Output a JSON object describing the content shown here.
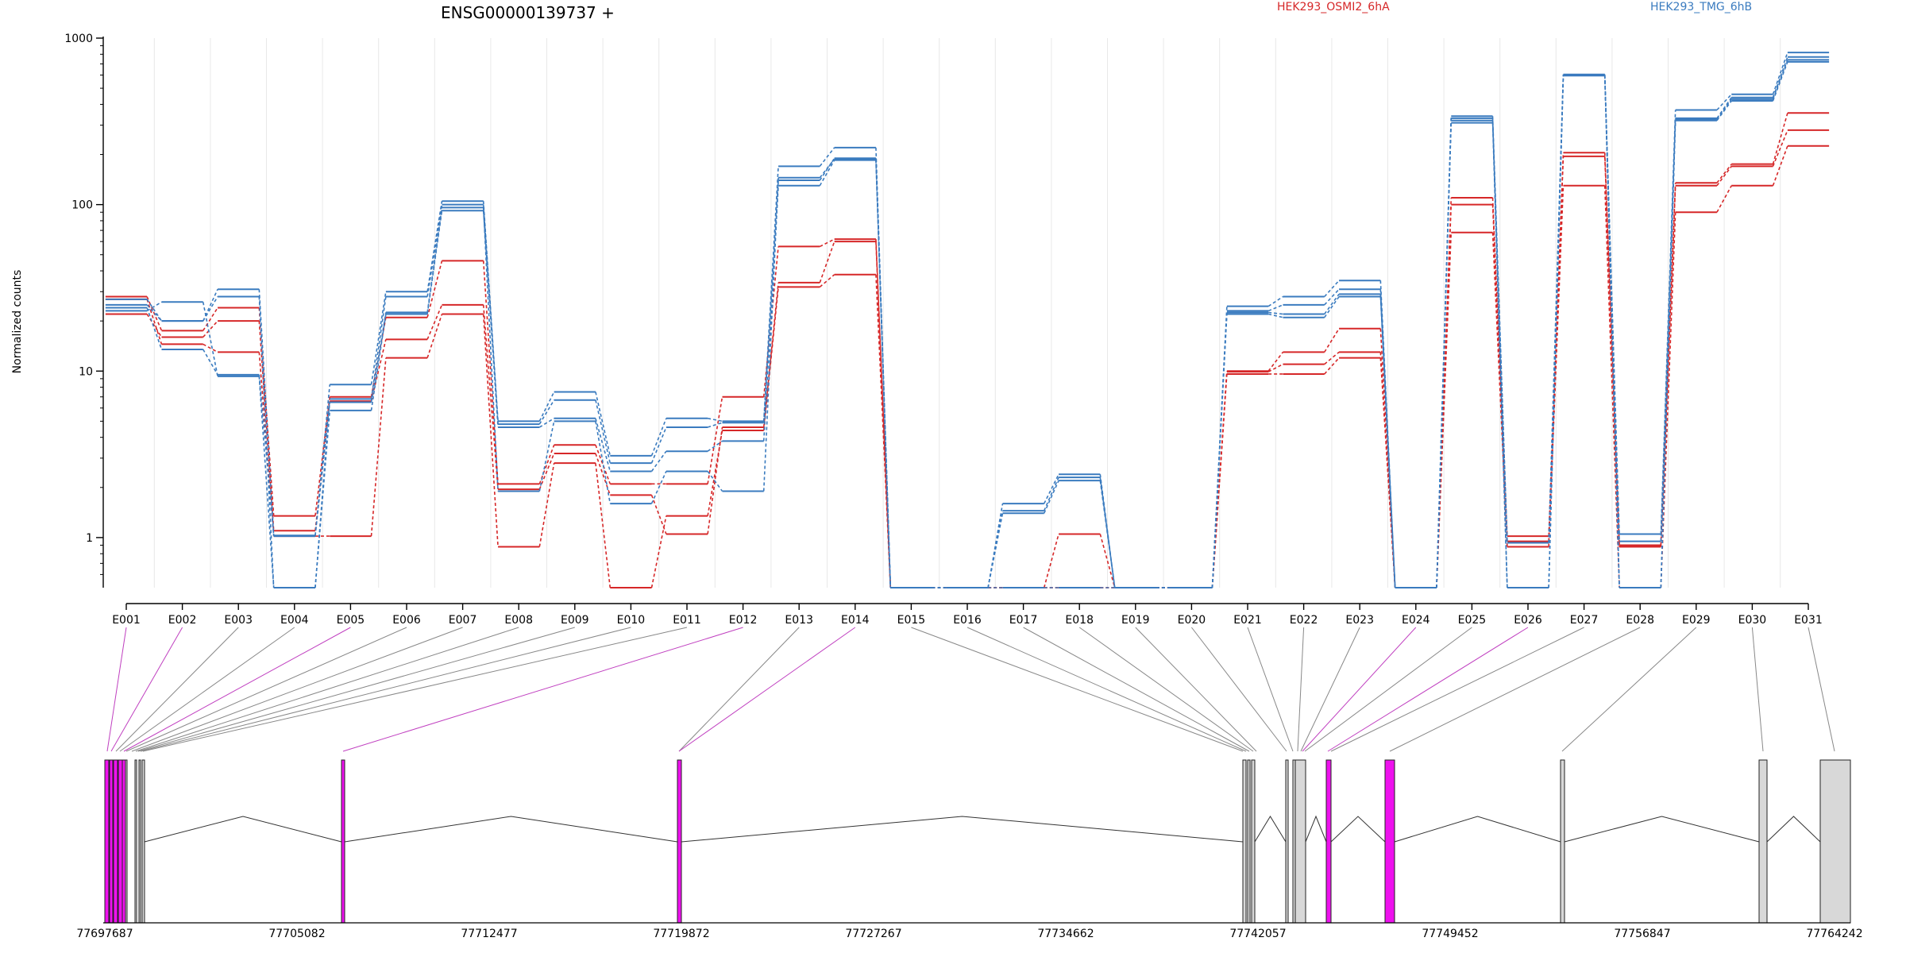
{
  "chart_data": {
    "type": "line",
    "title": "ENSG00000139737 +",
    "ylabel": "Normalized counts",
    "yscale": "log",
    "ylim": [
      0.5,
      1000
    ],
    "yticks": [
      {
        "v": 1,
        "label": "1"
      },
      {
        "v": 10,
        "label": "10"
      },
      {
        "v": 100,
        "label": "100"
      },
      {
        "v": 1000,
        "label": "1000"
      }
    ],
    "categories": [
      "E001",
      "E002",
      "E003",
      "E004",
      "E005",
      "E006",
      "E007",
      "E008",
      "E009",
      "E010",
      "E011",
      "E012",
      "E013",
      "E014",
      "E015",
      "E016",
      "E017",
      "E018",
      "E019",
      "E020",
      "E021",
      "E022",
      "E023",
      "E024",
      "E025",
      "E026",
      "E027",
      "E028",
      "E029",
      "E030",
      "E031"
    ],
    "groups": [
      {
        "name": "HEK293_OSMI2_6hA",
        "color": "#d62728"
      },
      {
        "name": "HEK293_TMG_6hB",
        "color": "#3a7bbf"
      }
    ],
    "series": [
      {
        "group": 0,
        "values": [
          28,
          17.5,
          24,
          1.35,
          7,
          21,
          46,
          2.1,
          3.6,
          2.1,
          2.1,
          7,
          56,
          62,
          0.5,
          0.5,
          0.5,
          1.05,
          0.5,
          0.5,
          10,
          13,
          18,
          0.5,
          110,
          1.02,
          205,
          0.9,
          135,
          175,
          355
        ]
      },
      {
        "group": 0,
        "values": [
          22,
          16,
          20,
          1.1,
          6.6,
          15.5,
          25,
          1.95,
          3.2,
          1.8,
          1.05,
          4.6,
          34,
          60,
          0.5,
          0.5,
          0.5,
          0.5,
          0.5,
          0.5,
          9.9,
          11,
          13,
          0.5,
          100,
          0.95,
          195,
          0.88,
          130,
          170,
          280
        ]
      },
      {
        "group": 0,
        "values": [
          27,
          14.5,
          13,
          1.02,
          1.02,
          12,
          22,
          0.88,
          2.8,
          0.5,
          1.35,
          4.4,
          32,
          38,
          0.5,
          0.5,
          0.5,
          0.5,
          0.5,
          0.5,
          9.6,
          9.6,
          12,
          0.5,
          68,
          0.88,
          130,
          0.5,
          90,
          130,
          225
        ]
      },
      {
        "group": 1,
        "values": [
          27,
          20,
          31,
          1.02,
          8.3,
          30,
          105,
          5,
          7.5,
          3.1,
          5.2,
          5,
          170,
          220,
          0.5,
          0.5,
          1.6,
          2.4,
          0.5,
          0.5,
          24.5,
          28,
          35,
          0.5,
          340,
          0.93,
          605,
          1.05,
          370,
          460,
          820
        ]
      },
      {
        "group": 1,
        "values": [
          25,
          20,
          28,
          0.5,
          6.8,
          28,
          100,
          4.8,
          6.7,
          2.8,
          4.6,
          4.9,
          140,
          190,
          0.5,
          0.5,
          1.4,
          2.2,
          0.5,
          0.5,
          23,
          25,
          31,
          0.5,
          320,
          0.93,
          600,
          0.95,
          330,
          440,
          770
        ]
      },
      {
        "group": 1,
        "values": [
          23,
          26,
          9.3,
          0.5,
          5.8,
          22,
          92,
          4.6,
          5.2,
          2.5,
          3.3,
          3.8,
          130,
          185,
          0.5,
          0.5,
          0.5,
          0.5,
          0.5,
          0.5,
          22,
          21,
          28,
          0.5,
          310,
          0.5,
          595,
          0.5,
          320,
          420,
          720
        ]
      },
      {
        "group": 1,
        "values": [
          24,
          13.5,
          9.5,
          1.03,
          6.5,
          22.5,
          96,
          1.9,
          5,
          1.6,
          2.5,
          1.9,
          145,
          188,
          0.5,
          0.5,
          1.45,
          2.3,
          0.5,
          0.5,
          22.5,
          22,
          29,
          0.5,
          330,
          0.5,
          602,
          0.5,
          325,
          430,
          740
        ]
      }
    ],
    "gene_model": {
      "coord_labels": [
        "77697687",
        "77705082",
        "77712477",
        "77719872",
        "77727267",
        "77734662",
        "77742057",
        "77749452",
        "77756847",
        "77764242"
      ],
      "exon_colors": {
        "highlight": "#ee11ee",
        "normal": "#d8d8d8"
      },
      "highlighted_bins": [
        "E001",
        "E002",
        "E005",
        "E012",
        "E014",
        "E024",
        "E026"
      ]
    }
  }
}
